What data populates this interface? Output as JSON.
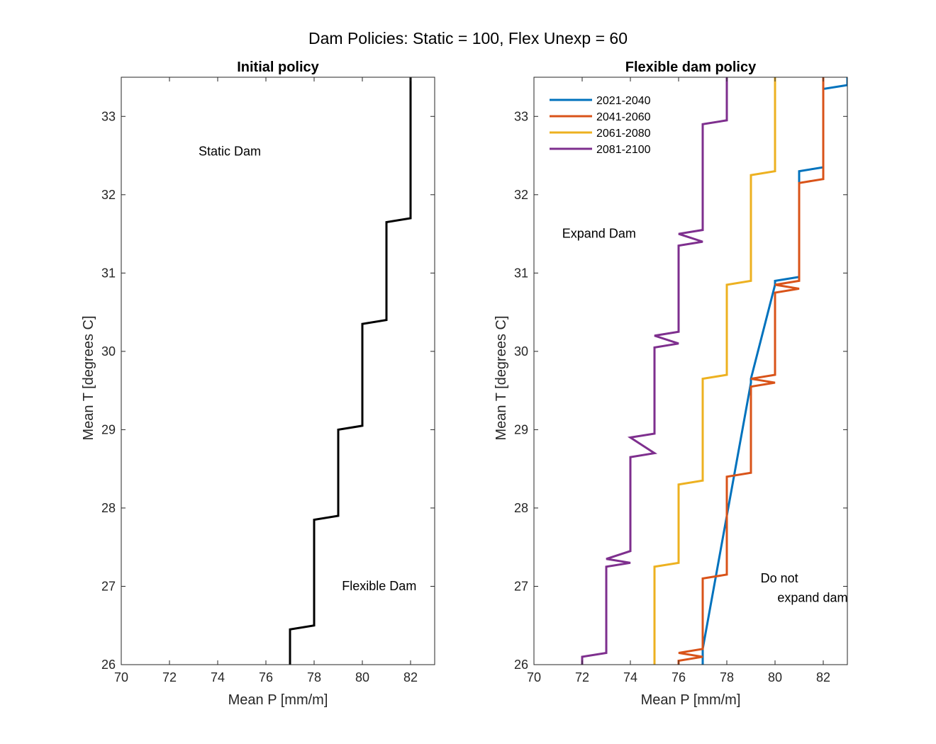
{
  "figure": {
    "title": "Dam Policies: Static = 100, Flex Unexp = 60"
  },
  "chart_data": [
    {
      "type": "line",
      "title": "Initial policy",
      "xlabel": "Mean P [mm/m]",
      "ylabel": "Mean T [degrees C]",
      "xlim": [
        70,
        83
      ],
      "ylim": [
        26,
        33.5
      ],
      "xticks": [
        70,
        72,
        74,
        76,
        78,
        80,
        82
      ],
      "yticks": [
        26,
        27,
        28,
        29,
        30,
        31,
        32,
        33
      ],
      "grid": false,
      "annotations": [
        {
          "text": "Static Dam",
          "x": 74.5,
          "y": 32.5
        },
        {
          "text": "Flexible Dam",
          "x": 80.7,
          "y": 26.95
        }
      ],
      "series": [
        {
          "color": "#000000",
          "x": [
            77,
            77,
            78,
            78,
            79,
            79,
            80,
            80,
            81,
            81,
            82,
            82
          ],
          "y": [
            26.0,
            26.45,
            26.5,
            27.85,
            27.9,
            29.0,
            29.05,
            30.35,
            30.4,
            31.65,
            31.7,
            33.5
          ]
        }
      ]
    },
    {
      "type": "line",
      "title": "Flexible dam policy",
      "xlabel": "Mean P [mm/m]",
      "ylabel": "Mean T [degrees C]",
      "xlim": [
        70,
        83
      ],
      "ylim": [
        26,
        33.5
      ],
      "xticks": [
        70,
        72,
        74,
        76,
        78,
        80,
        82
      ],
      "yticks": [
        26,
        27,
        28,
        29,
        30,
        31,
        32,
        33
      ],
      "grid": false,
      "legend_position": "top-left",
      "annotations": [
        {
          "text": "Expand Dam",
          "x": 72.7,
          "y": 31.45
        },
        {
          "text": "Do not",
          "x": 79.4,
          "y": 27.05
        },
        {
          "text": "expand dam",
          "x": 80.1,
          "y": 26.8
        }
      ],
      "series": [
        {
          "name": "2021-2040",
          "color": "#0072BD",
          "x": [
            77,
            77,
            79,
            79,
            80,
            80,
            81,
            81,
            82,
            82,
            83,
            83
          ],
          "y": [
            26.0,
            26.2,
            29.6,
            29.65,
            30.85,
            30.9,
            30.95,
            32.3,
            32.35,
            33.35,
            33.4,
            33.5
          ]
        },
        {
          "name": "2041-2060",
          "color": "#D95319",
          "x": [
            76,
            76,
            77,
            76,
            77,
            77,
            78,
            78,
            79,
            79,
            80,
            79,
            80,
            80,
            81,
            80,
            81,
            81,
            82,
            82
          ],
          "y": [
            26.0,
            26.05,
            26.1,
            26.15,
            26.2,
            27.1,
            27.15,
            28.4,
            28.45,
            29.55,
            29.6,
            29.65,
            29.7,
            30.75,
            30.8,
            30.85,
            30.9,
            32.15,
            32.2,
            33.5
          ]
        },
        {
          "name": "2061-2080",
          "color": "#EDB120",
          "x": [
            75,
            75,
            76,
            76,
            77,
            77,
            78,
            78,
            79,
            79,
            80,
            80
          ],
          "y": [
            26.0,
            27.25,
            27.3,
            28.3,
            28.35,
            29.65,
            29.7,
            30.85,
            30.9,
            32.25,
            32.3,
            33.5
          ]
        },
        {
          "name": "2081-2100",
          "color": "#7E2F8E",
          "x": [
            72,
            72,
            73,
            73,
            74,
            73,
            74,
            74,
            75,
            74,
            75,
            75,
            76,
            75,
            76,
            76,
            77,
            76,
            77,
            77,
            78,
            78
          ],
          "y": [
            26.0,
            26.1,
            26.15,
            27.25,
            27.3,
            27.35,
            27.45,
            28.65,
            28.7,
            28.9,
            28.95,
            30.05,
            30.1,
            30.2,
            30.25,
            31.35,
            31.4,
            31.5,
            31.55,
            32.9,
            32.95,
            33.5
          ]
        }
      ]
    }
  ]
}
